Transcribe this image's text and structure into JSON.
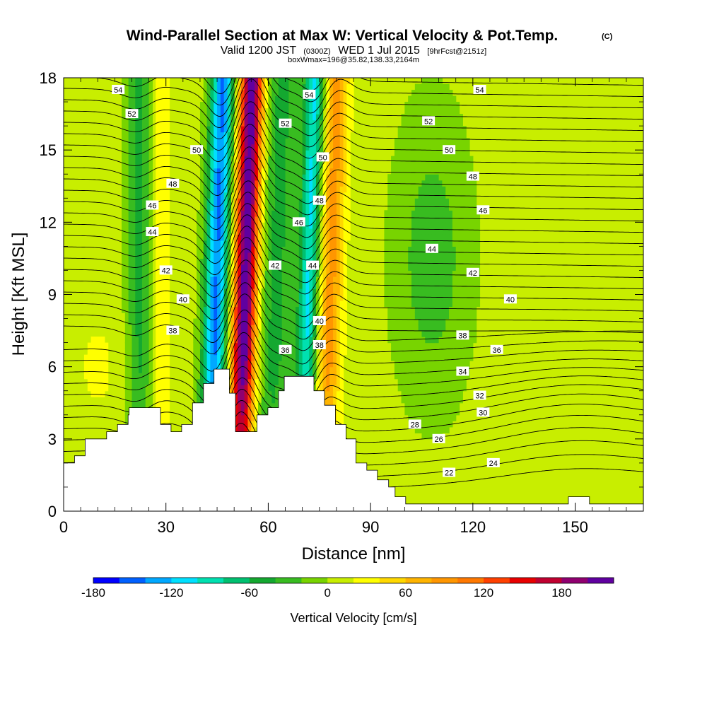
{
  "chart_data": {
    "type": "heatmap",
    "title": "Wind-Parallel Section at Max W: Vertical Velocity & Pot.Temp.",
    "title_mark": "(C)",
    "subtitle": {
      "valid": "Valid 1200 JST",
      "utc": "(0300Z)",
      "date": "WED 1 Jul 2015",
      "fcst": "[9hrFcst@2151z]"
    },
    "box_note": "boxWmax=196@35.82,138.33,2164m",
    "xlabel": "Distance [nm]",
    "ylabel": "Height [Kft MSL]",
    "xlim": [
      0,
      170
    ],
    "ylim": [
      0,
      18
    ],
    "xticks": [
      0,
      30,
      60,
      90,
      120,
      150
    ],
    "yticks": [
      0,
      3,
      6,
      9,
      12,
      15,
      18
    ],
    "grid": false,
    "colorbar": {
      "label": "Vertical Velocity [cm/s]",
      "min": -180,
      "max": 220,
      "step": 20,
      "tick_labels": [
        "-180",
        "-120",
        "-60",
        "0",
        "60",
        "120",
        "180"
      ],
      "tick_values": [
        -180,
        -120,
        -60,
        0,
        60,
        120,
        180
      ],
      "colors": [
        "#0000ff",
        "#0060ff",
        "#00a8ff",
        "#00e0ff",
        "#00e0b0",
        "#00c070",
        "#14a830",
        "#38bc20",
        "#78d400",
        "#c8ee00",
        "#ffff00",
        "#ffd800",
        "#ffb400",
        "#ff9600",
        "#ff7800",
        "#ff4000",
        "#e80000",
        "#c00030",
        "#900070",
        "#6000a0"
      ]
    },
    "velocity_bands": [
      {
        "x": 23,
        "w": 4.5,
        "a": -60,
        "note": "downdraft band"
      },
      {
        "x": 27.5,
        "w": 3.5,
        "a": 45,
        "note": "weak updraft"
      },
      {
        "x": 44.5,
        "w": 3.5,
        "a": -150,
        "note": "strong downdraft"
      },
      {
        "x": 53,
        "w": 3.5,
        "a": 210,
        "note": "max updraft (boxWmax=196)"
      },
      {
        "x": 62,
        "w": 5,
        "a": -55,
        "note": "downdraft"
      },
      {
        "x": 71.5,
        "w": 3,
        "a": -110,
        "note": "downdraft"
      },
      {
        "x": 78,
        "w": 3.5,
        "a": 80,
        "note": "updraft"
      },
      {
        "x": 108,
        "w": 11,
        "a": -40,
        "note": "broad weak sink"
      }
    ],
    "contour_labels": [
      {
        "v": "54",
        "x": 16,
        "y": 17.5
      },
      {
        "v": "54",
        "x": 72,
        "y": 17.3
      },
      {
        "v": "54",
        "x": 122,
        "y": 17.5
      },
      {
        "v": "52",
        "x": 20,
        "y": 16.5
      },
      {
        "v": "52",
        "x": 65,
        "y": 16.1
      },
      {
        "v": "52",
        "x": 107,
        "y": 16.2
      },
      {
        "v": "50",
        "x": 39,
        "y": 15.0
      },
      {
        "v": "50",
        "x": 76,
        "y": 14.7
      },
      {
        "v": "50",
        "x": 113,
        "y": 15.0
      },
      {
        "v": "48",
        "x": 32,
        "y": 13.6
      },
      {
        "v": "48",
        "x": 75,
        "y": 12.9
      },
      {
        "v": "48",
        "x": 120,
        "y": 13.9
      },
      {
        "v": "46",
        "x": 26,
        "y": 12.7
      },
      {
        "v": "46",
        "x": 69,
        "y": 12.0
      },
      {
        "v": "46",
        "x": 123,
        "y": 12.5
      },
      {
        "v": "44",
        "x": 26,
        "y": 11.6
      },
      {
        "v": "44",
        "x": 73,
        "y": 10.2
      },
      {
        "v": "44",
        "x": 108,
        "y": 10.9
      },
      {
        "v": "42",
        "x": 30,
        "y": 10.0
      },
      {
        "v": "42",
        "x": 62,
        "y": 10.2
      },
      {
        "v": "42",
        "x": 120,
        "y": 9.9
      },
      {
        "v": "40",
        "x": 35,
        "y": 8.8
      },
      {
        "v": "40",
        "x": 75,
        "y": 7.9
      },
      {
        "v": "40",
        "x": 131,
        "y": 8.8
      },
      {
        "v": "38",
        "x": 32,
        "y": 7.5
      },
      {
        "v": "38",
        "x": 75,
        "y": 6.9
      },
      {
        "v": "38",
        "x": 117,
        "y": 7.3
      },
      {
        "v": "36",
        "x": 65,
        "y": 6.7
      },
      {
        "v": "36",
        "x": 127,
        "y": 6.7
      },
      {
        "v": "34",
        "x": 117,
        "y": 5.8
      },
      {
        "v": "32",
        "x": 122,
        "y": 4.8
      },
      {
        "v": "30",
        "x": 123,
        "y": 4.1
      },
      {
        "v": "28",
        "x": 103,
        "y": 3.6
      },
      {
        "v": "26",
        "x": 110,
        "y": 3.0
      },
      {
        "v": "24",
        "x": 126,
        "y": 2.0
      },
      {
        "v": "22",
        "x": 113,
        "y": 1.6
      }
    ],
    "terrain": [
      [
        0,
        2.0
      ],
      [
        3.2,
        2.0
      ],
      [
        3.2,
        2.3
      ],
      [
        6.3,
        2.3
      ],
      [
        6.3,
        3.0
      ],
      [
        12.6,
        3.0
      ],
      [
        12.6,
        3.3
      ],
      [
        15.8,
        3.3
      ],
      [
        15.8,
        3.6
      ],
      [
        18.9,
        3.6
      ],
      [
        18.9,
        4.0
      ],
      [
        19.2,
        4.0
      ],
      [
        19.2,
        4.3
      ],
      [
        28.4,
        4.3
      ],
      [
        28.4,
        3.6
      ],
      [
        31.5,
        3.6
      ],
      [
        31.5,
        3.3
      ],
      [
        34.6,
        3.3
      ],
      [
        34.6,
        3.6
      ],
      [
        37.8,
        3.6
      ],
      [
        37.8,
        4.5
      ],
      [
        41.0,
        4.5
      ],
      [
        41.0,
        5.3
      ],
      [
        44.1,
        5.3
      ],
      [
        44.1,
        5.9
      ],
      [
        48.6,
        5.9
      ],
      [
        48.6,
        4.9
      ],
      [
        50.4,
        4.9
      ],
      [
        50.4,
        3.3
      ],
      [
        56.7,
        3.3
      ],
      [
        56.7,
        4.0
      ],
      [
        59.9,
        4.0
      ],
      [
        59.9,
        4.3
      ],
      [
        63.0,
        4.3
      ],
      [
        63.0,
        5.0
      ],
      [
        64.7,
        5.0
      ],
      [
        64.7,
        5.6
      ],
      [
        73.4,
        5.6
      ],
      [
        73.4,
        5.0
      ],
      [
        76.5,
        5.0
      ],
      [
        76.5,
        4.4
      ],
      [
        79.7,
        4.4
      ],
      [
        79.7,
        3.6
      ],
      [
        82.8,
        3.6
      ],
      [
        82.8,
        3.0
      ],
      [
        85.7,
        3.0
      ],
      [
        85.7,
        2.0
      ],
      [
        88.9,
        2.0
      ],
      [
        88.9,
        1.7
      ],
      [
        92.0,
        1.7
      ],
      [
        92.0,
        1.3
      ],
      [
        95.3,
        1.3
      ],
      [
        95.3,
        1.0
      ],
      [
        97.2,
        1.0
      ],
      [
        97.2,
        0.6
      ],
      [
        100.3,
        0.6
      ],
      [
        100.3,
        0.3
      ],
      [
        148.0,
        0.3
      ],
      [
        148.0,
        0.6
      ],
      [
        154.2,
        0.6
      ],
      [
        154.2,
        0.3
      ],
      [
        170,
        0.3
      ],
      [
        170,
        0
      ]
    ]
  }
}
